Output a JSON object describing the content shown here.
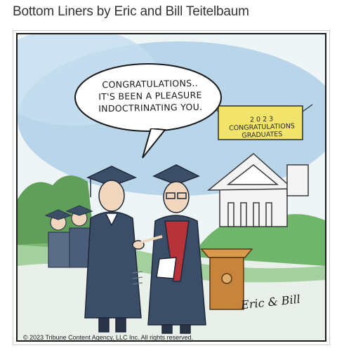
{
  "page_title": "Bottom Liners by Eric and Bill Teitelbaum",
  "speech_bubble": {
    "lines": [
      "CONGRATULATIONS..",
      "IT'S BEEN A PLEASURE",
      "INDOCTRINATING YOU."
    ]
  },
  "banner": {
    "lines": [
      "2 0 2 3",
      "CONGRATULATIONS",
      "GRADUATES"
    ]
  },
  "signature": "Eric & Bill",
  "copyright": "© 2023 Tribune Content Agency, LLC Inc. All rights reserved.",
  "colors": {
    "sky": "#aecfe6",
    "grass": "#6fb56b",
    "gown": "#3b4e68",
    "sash": "#b8323a",
    "banner": "#f2e36a",
    "podium": "#c8843b"
  }
}
